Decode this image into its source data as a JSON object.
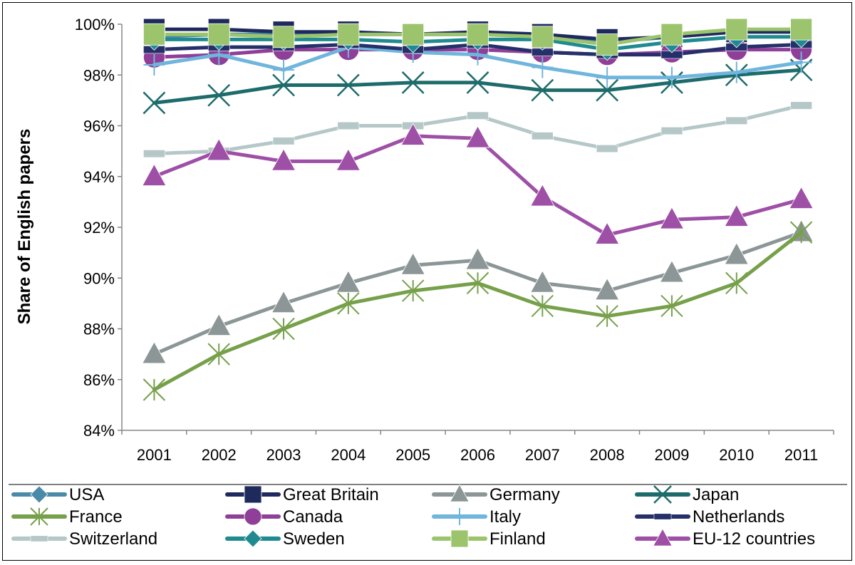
{
  "chart_data": {
    "type": "line",
    "title": "",
    "xlabel": "",
    "ylabel": "Share of English papers",
    "ylim": [
      84,
      100
    ],
    "y_ticks": [
      "84%",
      "86%",
      "88%",
      "90%",
      "92%",
      "94%",
      "96%",
      "98%",
      "100%"
    ],
    "y_tick_values": [
      84,
      86,
      88,
      90,
      92,
      94,
      96,
      98,
      100
    ],
    "categories": [
      "2001",
      "2002",
      "2003",
      "2004",
      "2005",
      "2006",
      "2007",
      "2008",
      "2009",
      "2010",
      "2011"
    ],
    "grid": false,
    "legend_position": "bottom",
    "series": [
      {
        "name": "USA",
        "color": "#4A8AA8",
        "marker": "diamond",
        "values": [
          99.5,
          99.6,
          99.6,
          99.6,
          99.6,
          99.6,
          99.6,
          99.3,
          99.5,
          99.7,
          99.7
        ]
      },
      {
        "name": "Great Britain",
        "color": "#1F2A5C",
        "marker": "square",
        "values": [
          99.8,
          99.8,
          99.7,
          99.7,
          99.6,
          99.7,
          99.6,
          99.4,
          99.5,
          99.7,
          99.7
        ]
      },
      {
        "name": "Germany",
        "color": "#8C9696",
        "marker": "triangle",
        "values": [
          87.0,
          88.1,
          89.0,
          89.8,
          90.5,
          90.7,
          89.8,
          89.5,
          90.2,
          90.9,
          91.8
        ]
      },
      {
        "name": "Japan",
        "color": "#1E6B6B",
        "marker": "x",
        "values": [
          96.9,
          97.2,
          97.6,
          97.6,
          97.7,
          97.7,
          97.4,
          97.4,
          97.7,
          98.0,
          98.2
        ]
      },
      {
        "name": "France",
        "color": "#76A04A",
        "marker": "star",
        "values": [
          85.6,
          87.0,
          88.0,
          89.0,
          89.5,
          89.8,
          88.9,
          88.5,
          88.9,
          89.8,
          91.8
        ]
      },
      {
        "name": "Canada",
        "color": "#8F3F98",
        "marker": "circle",
        "values": [
          98.7,
          98.8,
          99.0,
          99.0,
          99.0,
          99.0,
          98.9,
          98.8,
          98.9,
          99.0,
          99.0
        ]
      },
      {
        "name": "Italy",
        "color": "#6FB5DC",
        "marker": "plus",
        "values": [
          98.4,
          98.8,
          98.2,
          99.1,
          98.9,
          98.8,
          98.3,
          97.9,
          97.9,
          98.1,
          98.5
        ]
      },
      {
        "name": "Netherlands",
        "color": "#252F6A",
        "marker": "dash",
        "values": [
          99.0,
          99.1,
          99.1,
          99.2,
          99.0,
          99.2,
          98.9,
          98.8,
          98.8,
          99.1,
          99.2
        ]
      },
      {
        "name": "Switzerland",
        "color": "#B5C7C7",
        "marker": "dash",
        "values": [
          94.9,
          95.0,
          95.4,
          96.0,
          96.0,
          96.4,
          95.6,
          95.1,
          95.8,
          96.2,
          96.8
        ]
      },
      {
        "name": "Sweden",
        "color": "#1F8A8F",
        "marker": "diamond",
        "values": [
          99.4,
          99.4,
          99.4,
          99.4,
          99.3,
          99.4,
          99.4,
          99.0,
          99.3,
          99.5,
          99.5
        ]
      },
      {
        "name": "Finland",
        "color": "#9BC46C",
        "marker": "square",
        "values": [
          99.6,
          99.6,
          99.5,
          99.6,
          99.6,
          99.6,
          99.5,
          99.2,
          99.6,
          99.8,
          99.8
        ]
      },
      {
        "name": "EU-12 countries",
        "color": "#9E4FA6",
        "marker": "triangle",
        "values": [
          94.0,
          95.0,
          94.6,
          94.6,
          95.6,
          95.5,
          93.2,
          91.7,
          92.3,
          92.4,
          93.1
        ]
      }
    ]
  }
}
